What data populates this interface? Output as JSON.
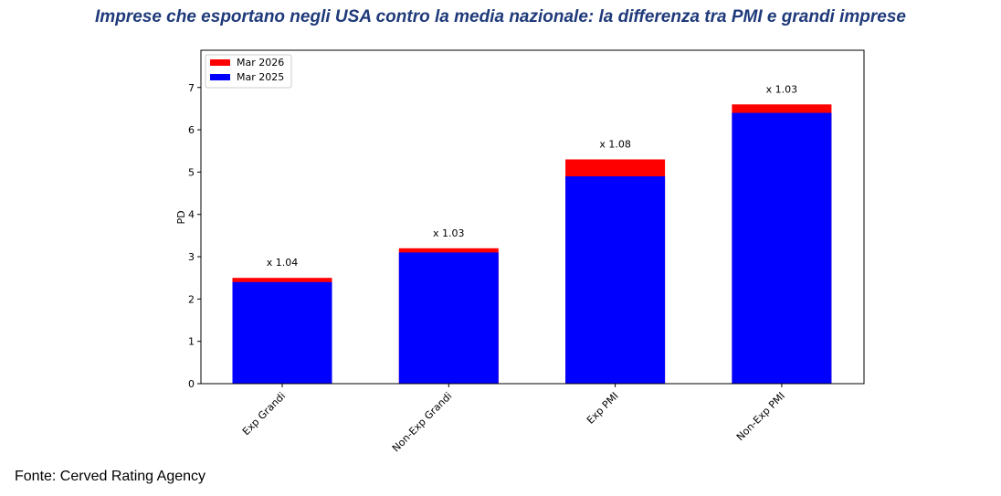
{
  "chart_data": {
    "type": "bar",
    "title": "Imprese che esportano negli USA contro la media nazionale: la differenza tra PMI e grandi imprese",
    "ylabel": "PD",
    "categories": [
      "Exp Grandi",
      "Non-Exp Grandi",
      "Exp PMI",
      "Non-Exp PMI"
    ],
    "series": [
      {
        "name": "Mar 2026",
        "color": "#ff0000",
        "values": [
          2.5,
          3.2,
          5.3,
          6.6
        ]
      },
      {
        "name": "Mar 2025",
        "color": "#0000ff",
        "values": [
          2.4,
          3.1,
          4.9,
          6.4
        ]
      }
    ],
    "annotations": [
      "x 1.04",
      "x 1.03",
      "x 1.08",
      "x 1.03"
    ],
    "ylim": [
      0,
      7.88
    ],
    "yticks": [
      0,
      1,
      2,
      3,
      4,
      5,
      6,
      7
    ],
    "legend": "upper-left",
    "source": "Fonte: Cerved Rating Agency"
  }
}
